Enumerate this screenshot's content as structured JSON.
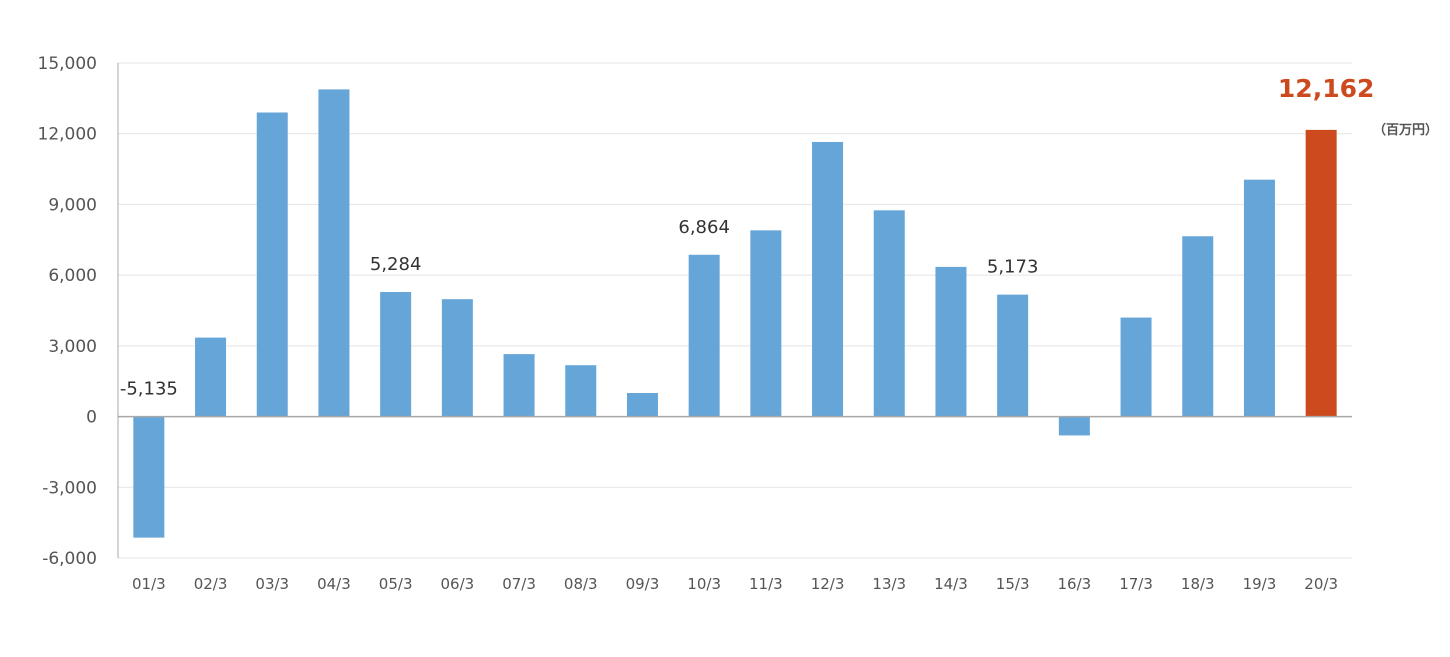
{
  "chart_data": {
    "type": "bar",
    "categories": [
      "01/3",
      "02/3",
      "03/3",
      "04/3",
      "05/3",
      "06/3",
      "07/3",
      "08/3",
      "09/3",
      "10/3",
      "11/3",
      "12/3",
      "13/3",
      "14/3",
      "15/3",
      "16/3",
      "17/3",
      "18/3",
      "19/3",
      "20/3"
    ],
    "values": [
      -5135,
      3350,
      12900,
      13880,
      5284,
      4980,
      2650,
      2180,
      1000,
      6864,
      7900,
      11650,
      8750,
      6350,
      5173,
      -800,
      4200,
      7650,
      10050,
      12162
    ],
    "ylim": [
      -6000,
      15000
    ],
    "yticks": [
      -6000,
      -3000,
      0,
      3000,
      6000,
      9000,
      12000,
      15000
    ],
    "ytick_labels": [
      "-6,000",
      "-3,000",
      "0",
      "3,000",
      "6,000",
      "9,000",
      "12,000",
      "15,000"
    ],
    "data_labels": [
      {
        "index": 0,
        "text": "-5,135"
      },
      {
        "index": 4,
        "text": "5,284"
      },
      {
        "index": 9,
        "text": "6,864"
      },
      {
        "index": 14,
        "text": "5,173"
      }
    ],
    "highlight": {
      "index": 19,
      "text": "12,162",
      "unit": "（百万円）"
    },
    "colors": {
      "bar": "#66a5d7",
      "highlight": "#cd4a1e",
      "grid": "#e4e4e4",
      "axis": "#a8a8a8",
      "tick_text": "#555555",
      "label_text": "#333333"
    },
    "grid": true
  }
}
